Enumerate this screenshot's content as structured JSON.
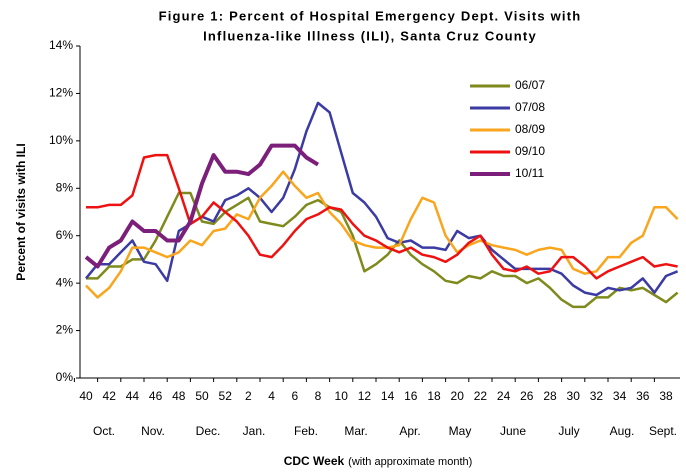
{
  "chart_data": {
    "type": "line",
    "title": [
      "Figure 1: Percent of Hospital Emergency Dept. Visits with",
      "Influenza-like Illness (ILI), Santa Cruz County"
    ],
    "y_label": "Percent of visits with ILI",
    "x_label": "CDC Week",
    "x_label_note": "(with approximate month)",
    "months": [
      "Oct.",
      "Nov.",
      "Dec.",
      "Jan.",
      "Feb.",
      "Mar.",
      "Apr.",
      "May",
      "June",
      "July",
      "Aug.",
      "Sept."
    ],
    "categories": [
      "40",
      null,
      "42",
      null,
      "44",
      null,
      "46",
      null,
      "48",
      null,
      "50",
      null,
      "52",
      null,
      "2",
      null,
      "4",
      null,
      "6",
      null,
      "8",
      null,
      "10",
      null,
      "12",
      null,
      "14",
      null,
      "16",
      null,
      "18",
      null,
      "20",
      null,
      "22",
      null,
      "24",
      null,
      "26",
      null,
      "28",
      null,
      "30",
      null,
      "32",
      null,
      "34",
      null,
      "36",
      null,
      "38",
      null
    ],
    "ylim": [
      0,
      14
    ],
    "yticks": [
      {
        "value": 0,
        "label": "0%"
      },
      {
        "value": 2,
        "label": "2%"
      },
      {
        "value": 4,
        "label": "4%"
      },
      {
        "value": 6,
        "label": "6%"
      },
      {
        "value": 8,
        "label": "8%"
      },
      {
        "value": 10,
        "label": "10%"
      },
      {
        "value": 12,
        "label": "12%"
      },
      {
        "value": 14,
        "label": "14%"
      }
    ],
    "legend": "upper right",
    "series": [
      {
        "name": "06/07",
        "color": "#7f8a1c",
        "values": [
          4.2,
          4.2,
          4.7,
          4.7,
          5.0,
          5.0,
          5.8,
          6.8,
          7.8,
          7.8,
          6.6,
          6.5,
          7.0,
          7.3,
          7.6,
          6.6,
          6.5,
          6.4,
          6.8,
          7.3,
          7.5,
          7.2,
          7.0,
          6.0,
          4.5,
          4.8,
          5.2,
          5.8,
          5.2,
          4.8,
          4.5,
          4.1,
          4.0,
          4.3,
          4.2,
          4.5,
          4.3,
          4.3,
          4.0,
          4.2,
          3.8,
          3.3,
          3.0,
          3.0,
          3.4,
          3.4,
          3.8,
          3.7,
          3.8,
          3.5,
          3.2,
          3.6
        ]
      },
      {
        "name": "07/08",
        "color": "#3b3ba3",
        "values": [
          4.2,
          4.8,
          4.8,
          5.3,
          5.8,
          4.9,
          4.8,
          4.1,
          6.2,
          6.5,
          6.8,
          6.6,
          7.5,
          7.7,
          8.0,
          7.6,
          7.0,
          7.6,
          8.8,
          10.4,
          11.6,
          11.2,
          9.5,
          7.8,
          7.4,
          6.8,
          5.9,
          5.7,
          5.8,
          5.5,
          5.5,
          5.4,
          6.2,
          5.9,
          6.0,
          5.4,
          5.0,
          4.6,
          4.6,
          4.6,
          4.6,
          4.4,
          3.9,
          3.6,
          3.5,
          3.8,
          3.7,
          3.8,
          4.2,
          3.6,
          4.3,
          4.5
        ]
      },
      {
        "name": "08/09",
        "color": "#f9a51d",
        "values": [
          3.9,
          3.4,
          3.8,
          4.5,
          5.5,
          5.5,
          5.3,
          5.1,
          5.3,
          5.8,
          5.6,
          6.2,
          6.3,
          6.9,
          6.7,
          7.6,
          8.1,
          8.7,
          8.1,
          7.6,
          7.8,
          7.0,
          6.5,
          5.8,
          5.6,
          5.5,
          5.5,
          5.6,
          6.7,
          7.6,
          7.4,
          6.0,
          5.3,
          5.6,
          5.8,
          5.6,
          5.5,
          5.4,
          5.2,
          5.4,
          5.5,
          5.4,
          4.6,
          4.4,
          4.5,
          5.1,
          5.1,
          5.7,
          6.0,
          7.2,
          7.2,
          6.7
        ]
      },
      {
        "name": "09/10",
        "color": "#ee1111",
        "values": [
          7.2,
          7.2,
          7.3,
          7.3,
          7.7,
          9.3,
          9.4,
          9.4,
          8.0,
          6.5,
          6.8,
          7.4,
          7.0,
          6.6,
          6.0,
          5.2,
          5.1,
          5.6,
          6.2,
          6.7,
          6.9,
          7.2,
          7.1,
          6.5,
          6.0,
          5.8,
          5.5,
          5.3,
          5.5,
          5.2,
          5.1,
          4.9,
          5.2,
          5.7,
          6.0,
          5.2,
          4.6,
          4.5,
          4.7,
          4.4,
          4.5,
          5.1,
          5.1,
          4.7,
          4.2,
          4.5,
          4.7,
          4.9,
          5.1,
          4.7,
          4.8,
          4.7
        ]
      },
      {
        "name": "10/11",
        "color": "#7b1f7b",
        "values": [
          5.1,
          4.7,
          5.5,
          5.8,
          6.6,
          6.2,
          6.2,
          5.8,
          5.8,
          6.6,
          8.2,
          9.4,
          8.7,
          8.7,
          8.6,
          9.0,
          9.8,
          9.8,
          9.8,
          9.3,
          9.0,
          null,
          null,
          null,
          null,
          null,
          null,
          null,
          null,
          null,
          null,
          null,
          null,
          null,
          null,
          null,
          null,
          null,
          null,
          null,
          null,
          null,
          null,
          null,
          null,
          null,
          null,
          null,
          null,
          null,
          null,
          null
        ]
      }
    ]
  }
}
